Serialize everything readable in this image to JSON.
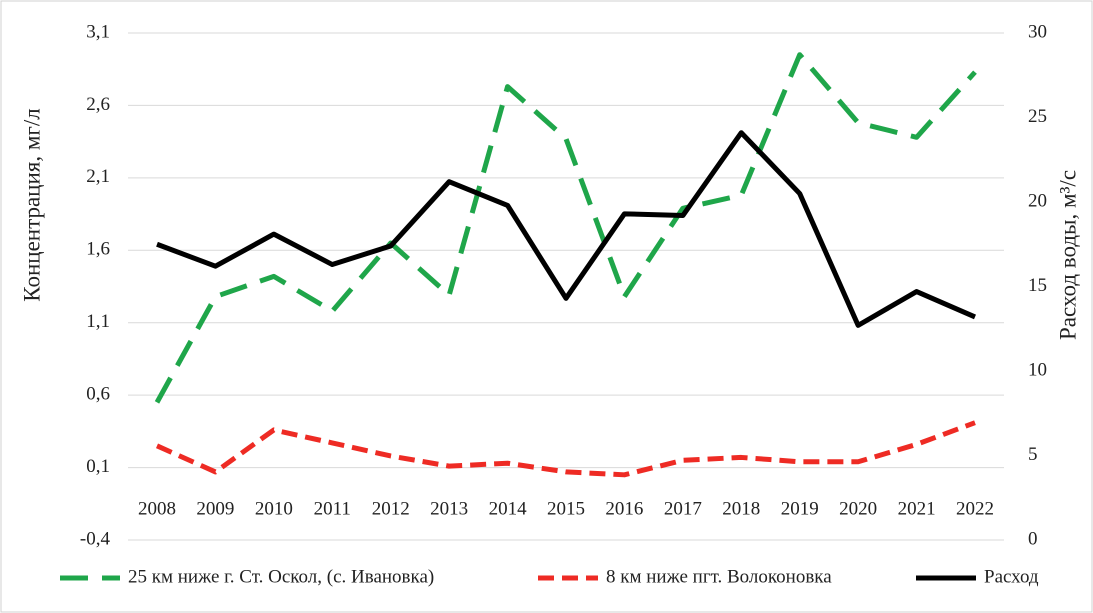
{
  "chart_data": {
    "type": "line",
    "y_label": "Концентрация, мг/л",
    "y2_label": "Расход воды, м³/с",
    "categories": [
      "2008",
      "2009",
      "2010",
      "2011",
      "2012",
      "2013",
      "2014",
      "2015",
      "2016",
      "2017",
      "2018",
      "2019",
      "2020",
      "2021",
      "2022"
    ],
    "series": [
      {
        "name": "25 км ниже г. Ст. Оскол, (с. Ивановка)",
        "color": "#1fa64a",
        "values": [
          0.55,
          1.28,
          1.42,
          1.18,
          1.65,
          1.29,
          2.73,
          2.37,
          1.28,
          1.89,
          1.98,
          2.95,
          2.48,
          2.38,
          2.83
        ]
      },
      {
        "name": "8 км ниже пгт. Волоконовка",
        "color": "#ee2b24",
        "values": [
          0.25,
          0.07,
          0.36,
          0.27,
          0.18,
          0.11,
          0.13,
          0.07,
          0.05,
          0.15,
          0.17,
          0.14,
          0.14,
          0.26,
          0.41
        ]
      },
      {
        "name": "Расход",
        "color": "#000000",
        "axis": "y2",
        "values": [
          17.5,
          16.2,
          18.1,
          16.3,
          17.4,
          21.2,
          19.8,
          14.3,
          19.3,
          19.2,
          24.1,
          20.5,
          12.7,
          14.7,
          13.2
        ]
      }
    ],
    "ylim": [
      -0.4,
      3.1
    ],
    "yticks": [
      {
        "value": -0.4,
        "label": "-0,4"
      },
      {
        "value": 0.1,
        "label": "0,1"
      },
      {
        "value": 0.6,
        "label": "0,6"
      },
      {
        "value": 1.1,
        "label": "1,1"
      },
      {
        "value": 1.6,
        "label": "1,6"
      },
      {
        "value": 2.1,
        "label": "2,1"
      },
      {
        "value": 2.6,
        "label": "2,6"
      },
      {
        "value": 3.1,
        "label": "3,1"
      }
    ],
    "y2lim": [
      0,
      30
    ],
    "y2ticks": [
      0,
      5,
      10,
      15,
      20,
      25,
      30
    ],
    "grid": true,
    "legend": "bottom"
  }
}
